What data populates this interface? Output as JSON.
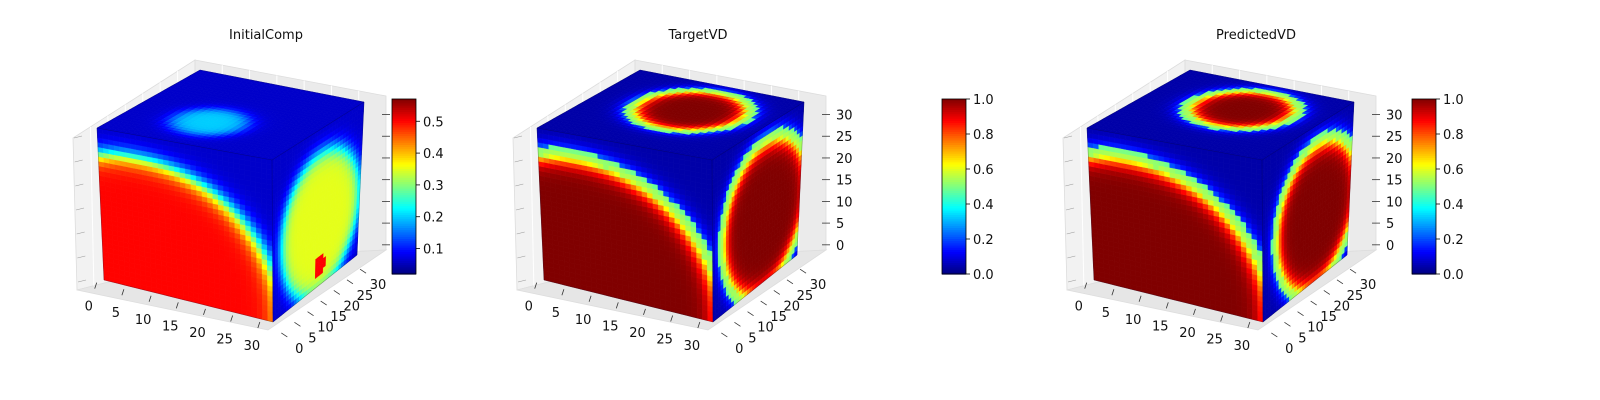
{
  "chart_data": [
    {
      "type": "heatmap",
      "subtype": "3d-voxel-cube",
      "title": "InitialComp",
      "x_ticks": [
        "0",
        "5",
        "10",
        "15",
        "20",
        "25",
        "30"
      ],
      "y_ticks": [
        "0",
        "5",
        "10",
        "15",
        "20",
        "25",
        "30"
      ],
      "z_ticks": [
        "",
        "",
        "",
        "",
        "",
        "",
        ""
      ],
      "xlim": [
        0,
        32
      ],
      "ylim": [
        0,
        32
      ],
      "zlim": [
        0,
        32
      ],
      "colormap": "jet",
      "colorbar": {
        "vmin": 0.02,
        "vmax": 0.57,
        "ticks": [
          "0.1",
          "0.2",
          "0.3",
          "0.4",
          "0.5"
        ]
      },
      "value_range": [
        0.02,
        0.57
      ],
      "features": {
        "front_blob": {
          "center": [
            0.2,
            0.0
          ],
          "radius": 0.85,
          "value": 0.5
        },
        "top_blob": {
          "center": [
            0.45,
            0.35
          ],
          "radius": 0.2,
          "value": 0.2
        },
        "side_blob": {
          "center": [
            0.55,
            0.4
          ],
          "radius": 0.45,
          "value": 0.35
        }
      }
    },
    {
      "type": "heatmap",
      "subtype": "3d-voxel-cube",
      "title": "TargetVD",
      "x_ticks": [
        "0",
        "5",
        "10",
        "15",
        "20",
        "25",
        "30"
      ],
      "y_ticks": [
        "0",
        "5",
        "10",
        "15",
        "20",
        "25",
        "30"
      ],
      "z_ticks": [
        "0",
        "5",
        "10",
        "15",
        "20",
        "25",
        "30"
      ],
      "xlim": [
        0,
        32
      ],
      "ylim": [
        0,
        32
      ],
      "zlim": [
        0,
        32
      ],
      "colormap": "jet",
      "colorbar": {
        "vmin": 0.0,
        "vmax": 1.0,
        "ticks": [
          "0.0",
          "0.2",
          "0.4",
          "0.6",
          "0.8",
          "1.0"
        ]
      },
      "value_range": [
        0.0,
        1.0
      ],
      "features": {
        "front_blob": {
          "center": [
            0.2,
            0.0
          ],
          "radius": 0.85,
          "value": 1.0
        },
        "top_blob": {
          "center": [
            0.55,
            0.6
          ],
          "radius": 0.3,
          "value": 1.0
        },
        "side_blob": {
          "center": [
            0.6,
            0.42
          ],
          "radius": 0.48,
          "value": 1.0
        }
      }
    },
    {
      "type": "heatmap",
      "subtype": "3d-voxel-cube",
      "title": "PredictedVD",
      "x_ticks": [
        "0",
        "5",
        "10",
        "15",
        "20",
        "25",
        "30"
      ],
      "y_ticks": [
        "0",
        "5",
        "10",
        "15",
        "20",
        "25",
        "30"
      ],
      "z_ticks": [
        "0",
        "5",
        "10",
        "15",
        "20",
        "25",
        "30"
      ],
      "xlim": [
        0,
        32
      ],
      "ylim": [
        0,
        32
      ],
      "zlim": [
        0,
        32
      ],
      "colormap": "jet",
      "colorbar": {
        "vmin": 0.0,
        "vmax": 1.0,
        "ticks": [
          "0.0",
          "0.2",
          "0.4",
          "0.6",
          "0.8",
          "1.0"
        ]
      },
      "value_range": [
        0.0,
        1.0
      ],
      "features": {
        "front_blob": {
          "center": [
            0.2,
            0.0
          ],
          "radius": 0.85,
          "value": 1.0
        },
        "top_blob": {
          "center": [
            0.55,
            0.62
          ],
          "radius": 0.28,
          "value": 1.0
        },
        "side_blob": {
          "center": [
            0.62,
            0.42
          ],
          "radius": 0.46,
          "value": 1.0
        }
      }
    }
  ]
}
